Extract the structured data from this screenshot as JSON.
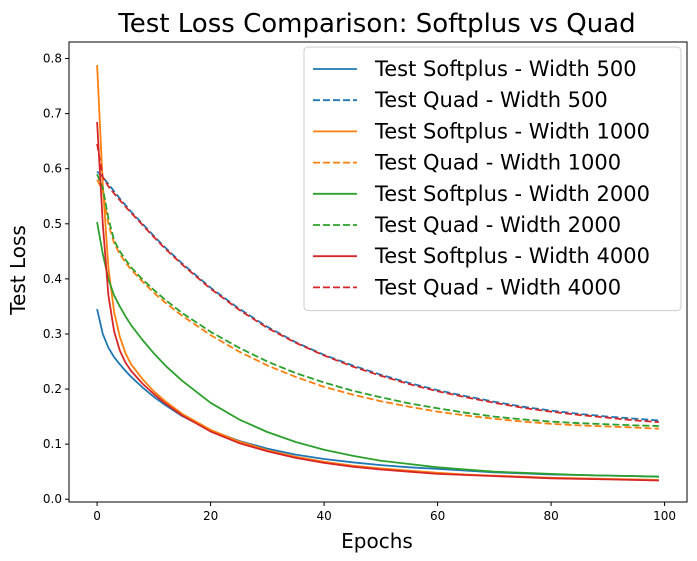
{
  "chart_data": {
    "type": "line",
    "title": "Test Loss Comparison: Softplus vs Quad",
    "xlabel": "Epochs",
    "ylabel": "Test Loss",
    "xlim": [
      -4.95,
      103.95
    ],
    "ylim": [
      -0.005,
      0.83
    ],
    "xticks": [
      0,
      20,
      40,
      60,
      80,
      100
    ],
    "yticks": [
      0.0,
      0.1,
      0.2,
      0.3,
      0.4,
      0.5,
      0.6,
      0.7,
      0.8
    ],
    "ytick_labels": [
      "0.0",
      "0.1",
      "0.2",
      "0.3",
      "0.4",
      "0.5",
      "0.6",
      "0.7",
      "0.8"
    ],
    "grid": false,
    "legend_position": "top-right",
    "x": [
      0,
      1,
      2,
      3,
      4,
      5,
      6,
      8,
      10,
      12,
      15,
      20,
      25,
      30,
      35,
      40,
      45,
      50,
      55,
      60,
      65,
      70,
      75,
      80,
      85,
      90,
      95,
      99
    ],
    "series": [
      {
        "name": "Test Softplus - Width 500",
        "color": "#1f77b4",
        "dash": "solid",
        "values": [
          0.345,
          0.3,
          0.275,
          0.258,
          0.245,
          0.233,
          0.222,
          0.203,
          0.186,
          0.171,
          0.151,
          0.125,
          0.106,
          0.092,
          0.081,
          0.073,
          0.067,
          0.062,
          0.058,
          0.055,
          0.052,
          0.049,
          0.047,
          0.045,
          0.044,
          0.043,
          0.042,
          0.041
        ]
      },
      {
        "name": "Test Quad - Width 500",
        "color": "#1f77b4",
        "dash": "dashed",
        "values": [
          0.595,
          0.585,
          0.572,
          0.559,
          0.546,
          0.534,
          0.522,
          0.5,
          0.478,
          0.457,
          0.428,
          0.384,
          0.346,
          0.313,
          0.285,
          0.262,
          0.243,
          0.226,
          0.211,
          0.198,
          0.187,
          0.177,
          0.168,
          0.161,
          0.155,
          0.15,
          0.146,
          0.143
        ]
      },
      {
        "name": "Test Softplus - Width 1000",
        "color": "#ff7f0e",
        "dash": "solid",
        "values": [
          0.788,
          0.57,
          0.42,
          0.34,
          0.295,
          0.265,
          0.245,
          0.218,
          0.196,
          0.178,
          0.155,
          0.126,
          0.105,
          0.089,
          0.077,
          0.068,
          0.061,
          0.056,
          0.052,
          0.048,
          0.045,
          0.043,
          0.041,
          0.039,
          0.038,
          0.037,
          0.036,
          0.035
        ]
      },
      {
        "name": "Test Quad - Width 1000",
        "color": "#ff7f0e",
        "dash": "dashed",
        "values": [
          0.58,
          0.56,
          0.5,
          0.465,
          0.445,
          0.43,
          0.417,
          0.395,
          0.375,
          0.357,
          0.333,
          0.298,
          0.268,
          0.243,
          0.222,
          0.204,
          0.19,
          0.178,
          0.168,
          0.159,
          0.152,
          0.146,
          0.141,
          0.137,
          0.134,
          0.132,
          0.13,
          0.128
        ]
      },
      {
        "name": "Test Softplus - Width 2000",
        "color": "#2ca02c",
        "dash": "solid",
        "values": [
          0.503,
          0.445,
          0.4,
          0.37,
          0.35,
          0.332,
          0.316,
          0.289,
          0.265,
          0.243,
          0.215,
          0.175,
          0.145,
          0.122,
          0.104,
          0.09,
          0.079,
          0.07,
          0.064,
          0.058,
          0.054,
          0.05,
          0.048,
          0.046,
          0.044,
          0.043,
          0.042,
          0.041
        ]
      },
      {
        "name": "Test Quad - Width 2000",
        "color": "#2ca02c",
        "dash": "dashed",
        "values": [
          0.59,
          0.565,
          0.51,
          0.47,
          0.45,
          0.435,
          0.421,
          0.399,
          0.38,
          0.362,
          0.338,
          0.304,
          0.275,
          0.25,
          0.229,
          0.212,
          0.197,
          0.185,
          0.174,
          0.165,
          0.157,
          0.15,
          0.145,
          0.141,
          0.138,
          0.136,
          0.134,
          0.133
        ]
      },
      {
        "name": "Test Softplus - Width 4000",
        "color": "#d62728",
        "dash": "solid",
        "values": [
          0.685,
          0.5,
          0.37,
          0.305,
          0.27,
          0.248,
          0.233,
          0.21,
          0.191,
          0.174,
          0.152,
          0.123,
          0.102,
          0.087,
          0.075,
          0.066,
          0.059,
          0.054,
          0.05,
          0.046,
          0.044,
          0.042,
          0.04,
          0.038,
          0.037,
          0.036,
          0.035,
          0.034
        ]
      },
      {
        "name": "Test Quad - Width 4000",
        "color": "#d62728",
        "dash": "dashed",
        "values": [
          0.645,
          0.585,
          0.568,
          0.555,
          0.543,
          0.531,
          0.52,
          0.498,
          0.476,
          0.455,
          0.426,
          0.382,
          0.344,
          0.311,
          0.284,
          0.261,
          0.241,
          0.224,
          0.209,
          0.196,
          0.185,
          0.175,
          0.166,
          0.159,
          0.153,
          0.148,
          0.143,
          0.14
        ]
      }
    ]
  }
}
